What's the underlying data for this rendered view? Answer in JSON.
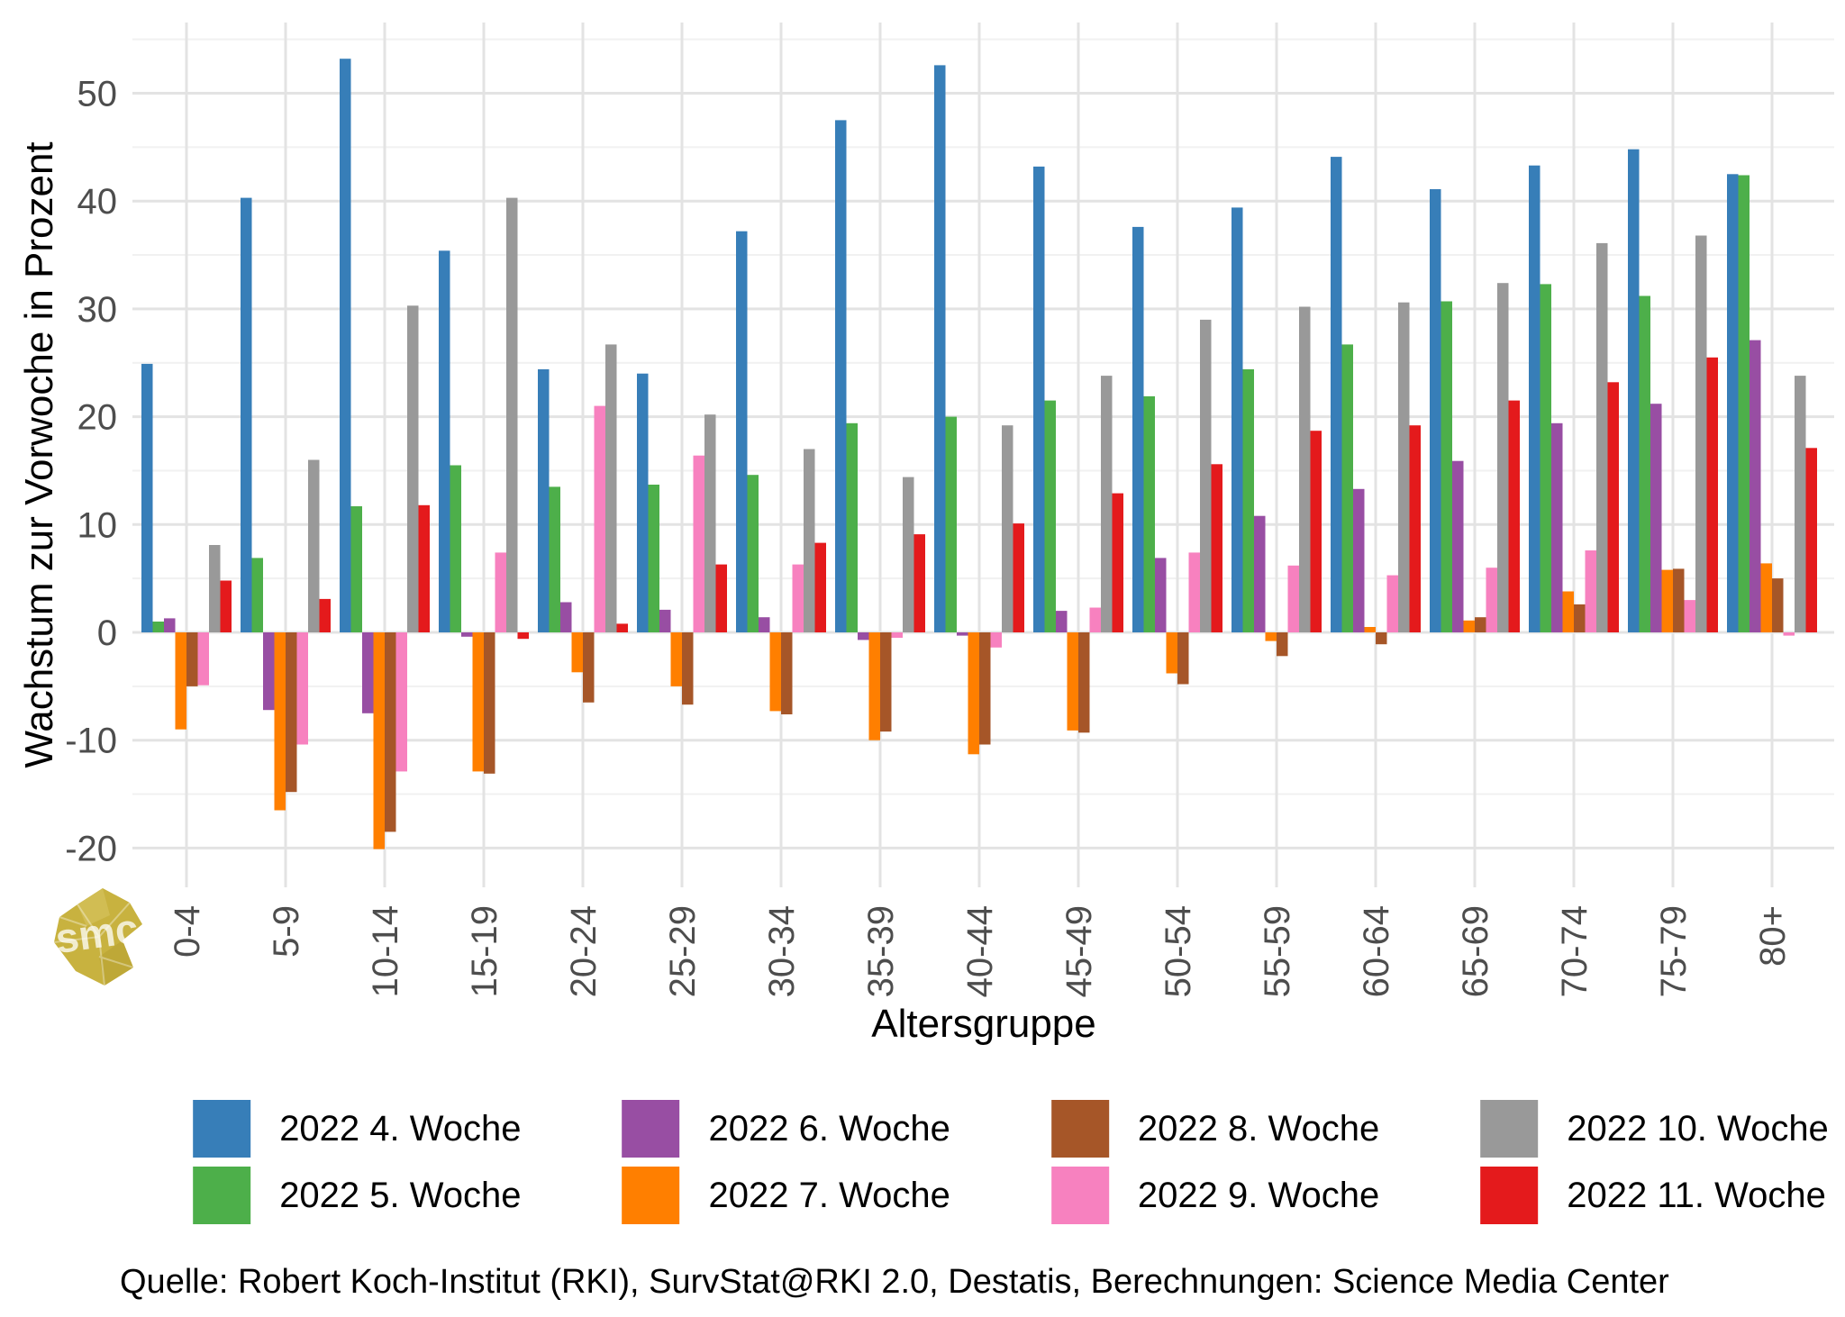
{
  "y_axis": {
    "title": "Wachstum zur Vorwoche in Prozent",
    "major_ticks": [
      -20,
      -10,
      0,
      10,
      20,
      30,
      40,
      50
    ],
    "minor_ticks": [
      -15,
      -5,
      5,
      15,
      25,
      35,
      45,
      55
    ]
  },
  "x_axis": {
    "title": "Altersgruppe"
  },
  "source_line": "Quelle: Robert Koch-Institut (RKI), SurvStat@RKI 2.0, Destatis, Berechnungen: Science Media Center",
  "logo": {
    "text": "smc",
    "color": "#c8b23f"
  },
  "chart_data": {
    "type": "bar",
    "title": "",
    "xlabel": "Altersgruppe",
    "ylabel": "Wachstum zur Vorwoche in Prozent",
    "ylim": [
      -23.5,
      56.5
    ],
    "grid": "on",
    "legend_position": "bottom",
    "axis_text_color": "#4d4d4d",
    "grid_major_color": "#e3e3e3",
    "grid_minor_color": "#f1f1f1",
    "categories": [
      "0-4",
      "5-9",
      "10-14",
      "15-19",
      "20-24",
      "25-29",
      "30-34",
      "35-39",
      "40-44",
      "45-49",
      "50-54",
      "55-59",
      "60-64",
      "65-69",
      "70-74",
      "75-79",
      "80+"
    ],
    "series": [
      {
        "name": "2022 4. Woche",
        "color": "#377EB8",
        "values": [
          24.9,
          40.3,
          53.2,
          35.4,
          24.4,
          24.0,
          37.2,
          47.5,
          52.6,
          43.2,
          37.6,
          39.4,
          44.1,
          41.1,
          43.3,
          44.8,
          42.5
        ]
      },
      {
        "name": "2022 5. Woche",
        "color": "#4DAF4A",
        "values": [
          1.0,
          6.9,
          11.7,
          15.5,
          13.5,
          13.7,
          14.6,
          19.4,
          20.0,
          21.5,
          21.9,
          24.4,
          26.7,
          30.7,
          32.3,
          31.2,
          42.4
        ]
      },
      {
        "name": "2022 6. Woche",
        "color": "#984EA3",
        "values": [
          1.3,
          -7.2,
          -7.5,
          -0.4,
          2.8,
          2.1,
          1.4,
          -0.7,
          -0.3,
          2.0,
          6.9,
          10.8,
          13.3,
          15.9,
          19.4,
          21.2,
          27.1
        ]
      },
      {
        "name": "2022 7. Woche",
        "color": "#FF7F00",
        "values": [
          -9.0,
          -16.5,
          -20.1,
          -12.9,
          -3.7,
          -5.0,
          -7.3,
          -10.0,
          -11.3,
          -9.1,
          -3.8,
          -0.8,
          0.5,
          1.1,
          3.8,
          5.8,
          6.4
        ]
      },
      {
        "name": "2022 8. Woche",
        "color": "#A65628",
        "values": [
          -5.0,
          -14.8,
          -18.5,
          -13.1,
          -6.5,
          -6.7,
          -7.6,
          -9.2,
          -10.4,
          -9.3,
          -4.8,
          -2.2,
          -1.1,
          1.4,
          2.6,
          5.9,
          5.0
        ]
      },
      {
        "name": "2022 9. Woche",
        "color": "#F781BF",
        "values": [
          -4.9,
          -10.4,
          -12.9,
          7.4,
          21.0,
          16.4,
          6.3,
          -0.5,
          -1.4,
          2.3,
          7.4,
          6.2,
          5.3,
          6.0,
          7.6,
          3.0,
          -0.3
        ]
      },
      {
        "name": "2022 10. Woche",
        "color": "#999999",
        "values": [
          8.1,
          16.0,
          30.3,
          40.3,
          26.7,
          20.2,
          17.0,
          14.4,
          19.2,
          23.8,
          29.0,
          30.2,
          30.6,
          32.4,
          36.1,
          36.8,
          23.8
        ]
      },
      {
        "name": "2022 11. Woche",
        "color": "#E41A1C",
        "values": [
          4.8,
          3.1,
          11.8,
          -0.6,
          0.8,
          6.3,
          8.3,
          9.1,
          10.1,
          12.9,
          15.6,
          18.7,
          19.2,
          21.5,
          23.2,
          25.5,
          17.1
        ]
      }
    ]
  }
}
